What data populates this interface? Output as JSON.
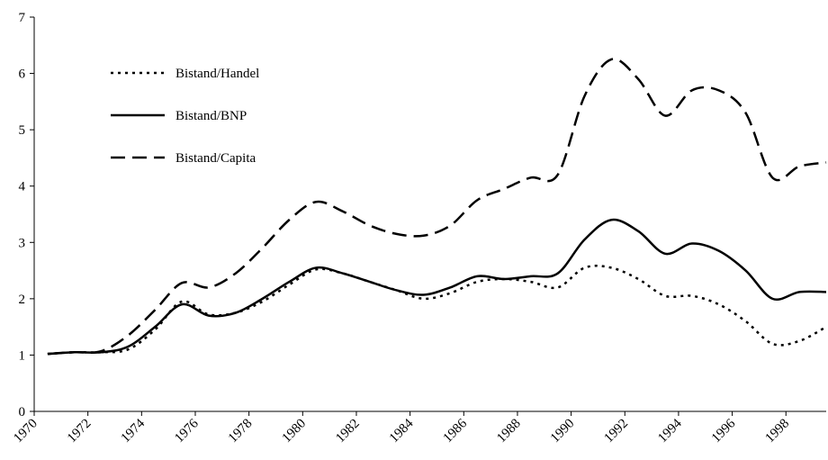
{
  "chart_data": {
    "type": "line",
    "x": [
      1970.5,
      1971.5,
      1972.5,
      1973.5,
      1974.5,
      1975.5,
      1976.5,
      1977.5,
      1978.5,
      1979.5,
      1980.5,
      1981.5,
      1982.5,
      1983.5,
      1984.5,
      1985.5,
      1986.5,
      1987.5,
      1988.5,
      1989.5,
      1990.5,
      1991.5,
      1992.5,
      1993.5,
      1994.5,
      1995.5,
      1996.5,
      1997.5,
      1998.5,
      1999.5
    ],
    "series": [
      {
        "name": "Bistand/Handel",
        "color": "#000000",
        "dash": "dotted",
        "values": [
          1.02,
          1.05,
          1.05,
          1.1,
          1.45,
          1.95,
          1.72,
          1.75,
          1.95,
          2.25,
          2.52,
          2.45,
          2.3,
          2.15,
          2.0,
          2.1,
          2.3,
          2.35,
          2.3,
          2.2,
          2.55,
          2.55,
          2.35,
          2.05,
          2.05,
          1.9,
          1.6,
          1.2,
          1.25,
          1.5
        ]
      },
      {
        "name": "Bistand/BNP",
        "color": "#000000",
        "dash": "solid",
        "values": [
          1.02,
          1.05,
          1.05,
          1.15,
          1.5,
          1.9,
          1.7,
          1.75,
          2.0,
          2.3,
          2.55,
          2.45,
          2.3,
          2.15,
          2.07,
          2.2,
          2.4,
          2.35,
          2.4,
          2.45,
          3.05,
          3.4,
          3.2,
          2.8,
          2.98,
          2.85,
          2.5,
          2.0,
          2.12,
          2.12
        ]
      },
      {
        "name": "Bistand/Capita",
        "color": "#000000",
        "dash": "dashed",
        "values": [
          1.02,
          1.05,
          1.07,
          1.35,
          1.8,
          2.28,
          2.2,
          2.45,
          2.9,
          3.4,
          3.72,
          3.55,
          3.3,
          3.15,
          3.12,
          3.3,
          3.75,
          3.95,
          4.15,
          4.2,
          5.6,
          6.25,
          5.9,
          5.25,
          5.7,
          5.7,
          5.3,
          4.15,
          4.35,
          4.42
        ]
      }
    ],
    "xlim": [
      1970,
      1999.5
    ],
    "xticks": [
      1970,
      1972,
      1974,
      1976,
      1978,
      1980,
      1982,
      1984,
      1986,
      1988,
      1990,
      1992,
      1994,
      1996,
      1998
    ],
    "ylim": [
      0,
      7
    ],
    "yticks": [
      0,
      1,
      2,
      3,
      4,
      5,
      6,
      7
    ],
    "legend": "upper left"
  }
}
